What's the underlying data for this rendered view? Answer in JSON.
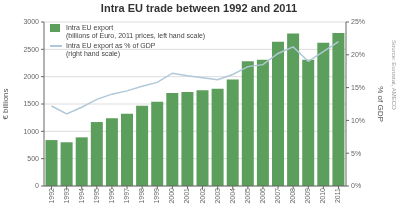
{
  "chart_data": {
    "type": "bar",
    "title": "Intra EU trade between 1992 and 2011",
    "categories": [
      "1992",
      "1993",
      "1994",
      "1995",
      "1996",
      "1997",
      "1998",
      "1999",
      "2000",
      "2001",
      "2002",
      "2003",
      "2004",
      "2005",
      "2006",
      "2007",
      "2008",
      "2009",
      "2010",
      "2011"
    ],
    "series": [
      {
        "name": "Intra EU export\n(billions of Euro, 2011 prices, left hand scale)",
        "type": "bar",
        "color": "#5c9e5c",
        "values": [
          840,
          800,
          890,
          1170,
          1240,
          1320,
          1470,
          1540,
          1700,
          1720,
          1750,
          1780,
          1950,
          2280,
          2310,
          2640,
          2790,
          2310,
          2620,
          2800
        ]
      },
      {
        "name": "Intra EU export as % of GDP\n(right hand scale)",
        "type": "line",
        "color": "#b0c8d8",
        "axis": "y2",
        "values": [
          12.2,
          11.0,
          12.0,
          13.2,
          14.0,
          14.5,
          15.2,
          15.8,
          17.2,
          16.8,
          16.5,
          16.2,
          17.0,
          18.2,
          18.5,
          20.2,
          21.2,
          19.0,
          20.5,
          22.0
        ]
      }
    ],
    "ylabel": "€ billions",
    "y2label": "% of GDP",
    "ylim": [
      0,
      3000
    ],
    "yticks": [
      0,
      500,
      1000,
      1500,
      2000,
      2500,
      3000
    ],
    "y2lim": [
      0,
      25
    ],
    "y2ticks": [
      {
        "value": 0,
        "label": "0%"
      },
      {
        "value": 5,
        "label": "5%"
      },
      {
        "value": 10,
        "label": "10%"
      },
      {
        "value": 15,
        "label": "15%"
      },
      {
        "value": 20,
        "label": "20%"
      },
      {
        "value": 25,
        "label": "25%"
      }
    ],
    "grid": true,
    "legend": "upper left",
    "annotations": [
      "Source: Eurostat, AMECO"
    ]
  }
}
